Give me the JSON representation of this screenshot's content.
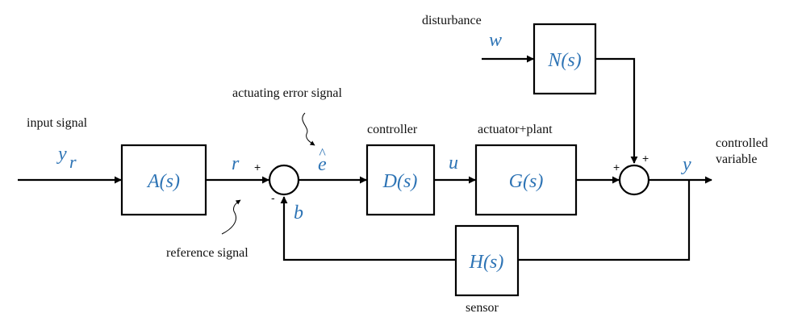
{
  "labels": {
    "input_signal": "input signal",
    "disturbance": "disturbance",
    "actuating_error_signal": "actuating error signal",
    "controller": "controller",
    "actuator_plant": "actuator+plant",
    "controlled_variable_line1": "controlled",
    "controlled_variable_line2": "variable",
    "reference_signal": "reference signal",
    "sensor": "sensor"
  },
  "variables": {
    "yr_main": "y",
    "yr_sub": "r",
    "w": "w",
    "r": "r",
    "e_hat": "e",
    "e_hat_accent": "^",
    "u": "u",
    "b": "b",
    "y": "y"
  },
  "blocks": {
    "A": "A(s)",
    "D": "D(s)",
    "G": "G(s)",
    "N": "N(s)",
    "H": "H(s)"
  },
  "signs": {
    "sum1_plus": "+",
    "sum1_minus": "-",
    "sum2_plus_left": "+",
    "sum2_plus_top": "+"
  }
}
